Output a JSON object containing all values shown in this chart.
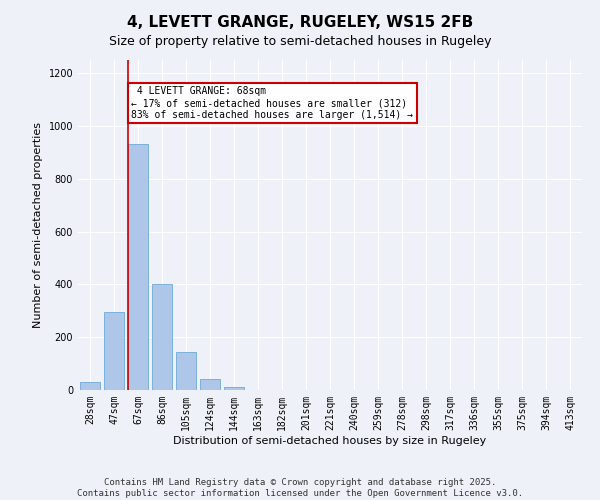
{
  "title": "4, LEVETT GRANGE, RUGELEY, WS15 2FB",
  "subtitle": "Size of property relative to semi-detached houses in Rugeley",
  "xlabel": "Distribution of semi-detached houses by size in Rugeley",
  "ylabel": "Number of semi-detached properties",
  "bar_labels": [
    "28sqm",
    "47sqm",
    "67sqm",
    "86sqm",
    "105sqm",
    "124sqm",
    "144sqm",
    "163sqm",
    "182sqm",
    "201sqm",
    "221sqm",
    "240sqm",
    "259sqm",
    "278sqm",
    "298sqm",
    "317sqm",
    "336sqm",
    "355sqm",
    "375sqm",
    "394sqm",
    "413sqm"
  ],
  "bar_values": [
    30,
    295,
    930,
    400,
    145,
    40,
    10,
    0,
    0,
    0,
    0,
    0,
    0,
    0,
    0,
    0,
    0,
    0,
    0,
    0,
    0
  ],
  "bar_color": "#aec6e8",
  "bar_edge_color": "#5a9fd4",
  "property_line_bar_idx": 2,
  "property_sqm": 68,
  "property_label": "4 LEVETT GRANGE: 68sqm",
  "pct_smaller": 17,
  "count_smaller": 312,
  "pct_larger": 83,
  "count_larger": 1514,
  "annotation_box_color": "#cc0000",
  "ylim": [
    0,
    1250
  ],
  "yticks": [
    0,
    200,
    400,
    600,
    800,
    1000,
    1200
  ],
  "footer_line1": "Contains HM Land Registry data © Crown copyright and database right 2025.",
  "footer_line2": "Contains public sector information licensed under the Open Government Licence v3.0.",
  "background_color": "#eef2f8",
  "grid_color": "#ffffff",
  "title_fontsize": 11,
  "subtitle_fontsize": 9,
  "axis_fontsize": 8,
  "tick_fontsize": 7,
  "footer_fontsize": 6.5
}
